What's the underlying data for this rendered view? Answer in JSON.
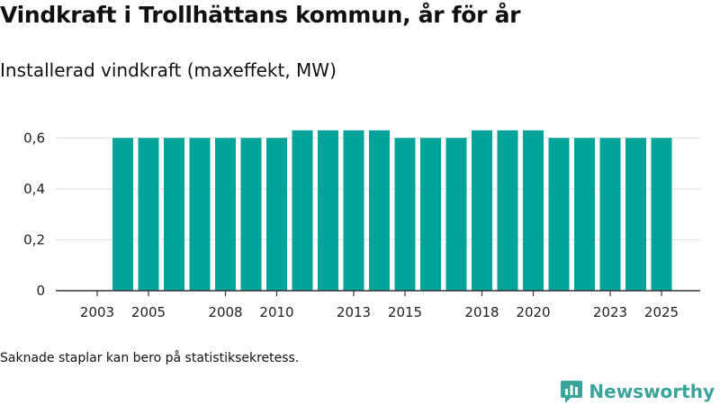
{
  "title": "Vindkraft i Trollhättans kommun, år för år",
  "subtitle": "Installerad vindkraft (maxeffekt, MW)",
  "footnote": "Saknade staplar kan bero på statistiksekretess.",
  "brand": {
    "name": "Newsworthy",
    "icon": "newsworthy-logo-icon"
  },
  "colors": {
    "bar": "#00a39a",
    "grid": "#dddddd",
    "axis": "#333333",
    "brand": "#3aa39a"
  },
  "chart_data": {
    "type": "bar",
    "title": "Vindkraft i Trollhättans kommun, år för år",
    "subtitle": "Installerad vindkraft (maxeffekt, MW)",
    "xlabel": "",
    "ylabel": "",
    "categories": [
      "2003",
      "2004",
      "2005",
      "2006",
      "2007",
      "2008",
      "2009",
      "2010",
      "2011",
      "2012",
      "2013",
      "2014",
      "2015",
      "2016",
      "2017",
      "2018",
      "2019",
      "2020",
      "2021",
      "2022",
      "2023",
      "2024",
      "2025"
    ],
    "values": [
      null,
      0.6,
      0.6,
      0.6,
      0.6,
      0.6,
      0.6,
      0.6,
      0.63,
      0.63,
      0.63,
      0.63,
      0.6,
      0.6,
      0.6,
      0.63,
      0.63,
      0.63,
      0.6,
      0.6,
      0.6,
      0.6,
      0.6
    ],
    "x_tick_labels": [
      "2003",
      "2005",
      "2008",
      "2010",
      "2013",
      "2015",
      "2018",
      "2020",
      "2023",
      "2025"
    ],
    "y_ticks": [
      0,
      0.2,
      0.4,
      0.6
    ],
    "y_tick_labels": [
      "0",
      "0,2",
      "0,4",
      "0,6"
    ],
    "ylim": [
      0,
      0.7
    ],
    "grid": true,
    "legend": "none"
  }
}
